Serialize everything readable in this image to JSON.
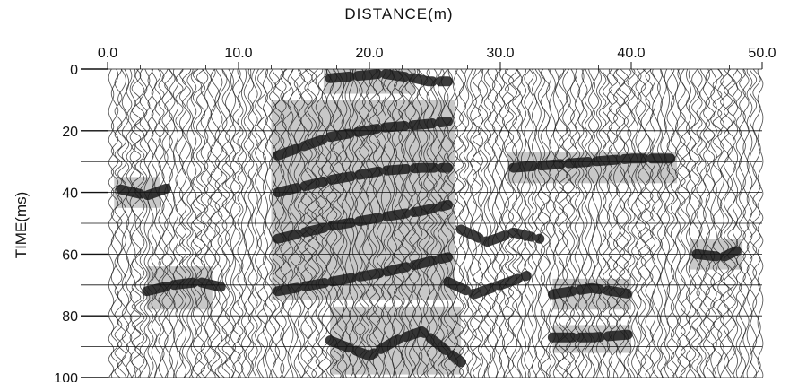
{
  "chart_data": {
    "type": "heatmap",
    "title": "DISTANCE(m)",
    "xlabel": "",
    "ylabel": "TIME(ms)",
    "x_ticks": [
      "0.0",
      "10.0",
      "20.0",
      "30.0",
      "40.0",
      "50.0"
    ],
    "x_tick_values": [
      0,
      10,
      20,
      30,
      40,
      50
    ],
    "y_ticks": [
      "0",
      "20",
      "40",
      "60",
      "80",
      "100"
    ],
    "y_tick_values": [
      0,
      20,
      40,
      60,
      80,
      100
    ],
    "xlim": [
      0,
      50
    ],
    "ylim": [
      0,
      100
    ],
    "y_inverted": true,
    "grid": true,
    "colors": {
      "trace": "#1a1a1a",
      "highlight": "#9a9a9a",
      "background": "#ffffff"
    },
    "highlighted_regions": [
      {
        "x": [
          16.5,
          23.5
        ],
        "y": [
          0,
          8
        ]
      },
      {
        "x": [
          12.5,
          26.5
        ],
        "y": [
          10,
          75
        ]
      },
      {
        "x": [
          30.5,
          43.5
        ],
        "y": [
          27,
          37
        ]
      },
      {
        "x": [
          3,
          8
        ],
        "y": [
          64,
          78
        ]
      },
      {
        "x": [
          17,
          27
        ],
        "y": [
          77,
          99
        ]
      },
      {
        "x": [
          34,
          40
        ],
        "y": [
          68,
          78
        ]
      },
      {
        "x": [
          34,
          40
        ],
        "y": [
          83,
          92
        ]
      },
      {
        "x": [
          44.5,
          48.5
        ],
        "y": [
          55,
          65
        ]
      },
      {
        "x": [
          0.5,
          4
        ],
        "y": [
          35,
          45
        ]
      }
    ],
    "reflectors": [
      {
        "x": [
          17,
          21,
          23.5,
          24.5,
          26
        ],
        "y": [
          3,
          1.5,
          3,
          4,
          4
        ]
      },
      {
        "x": [
          13,
          17,
          21,
          24,
          26
        ],
        "y": [
          28,
          22,
          19,
          18,
          17
        ]
      },
      {
        "x": [
          13,
          17,
          21,
          24,
          26
        ],
        "y": [
          40,
          36,
          33,
          32,
          32
        ]
      },
      {
        "x": [
          13,
          17,
          21,
          24,
          26
        ],
        "y": [
          55,
          51,
          48,
          46,
          44
        ]
      },
      {
        "x": [
          13,
          17,
          21,
          24,
          26
        ],
        "y": [
          72,
          69,
          66,
          63,
          61
        ]
      },
      {
        "x": [
          31,
          34,
          37,
          40,
          43
        ],
        "y": [
          32,
          31,
          30,
          29,
          29
        ]
      },
      {
        "x": [
          3,
          5,
          7,
          9
        ],
        "y": [
          72,
          70,
          69,
          71
        ]
      },
      {
        "x": [
          17,
          20,
          22,
          24,
          27
        ],
        "y": [
          88,
          93,
          88,
          85,
          95
        ]
      },
      {
        "x": [
          34,
          37,
          40
        ],
        "y": [
          73,
          71,
          73
        ]
      },
      {
        "x": [
          34,
          37,
          40
        ],
        "y": [
          87,
          87,
          86
        ]
      },
      {
        "x": [
          45,
          47,
          48
        ],
        "y": [
          60,
          61,
          59
        ]
      },
      {
        "x": [
          27,
          29,
          31,
          33
        ],
        "y": [
          52,
          56,
          53,
          55
        ]
      },
      {
        "x": [
          26,
          28,
          30,
          32
        ],
        "y": [
          69,
          73,
          70,
          67
        ]
      },
      {
        "x": [
          1,
          3,
          5
        ],
        "y": [
          39,
          41,
          38
        ]
      }
    ]
  }
}
